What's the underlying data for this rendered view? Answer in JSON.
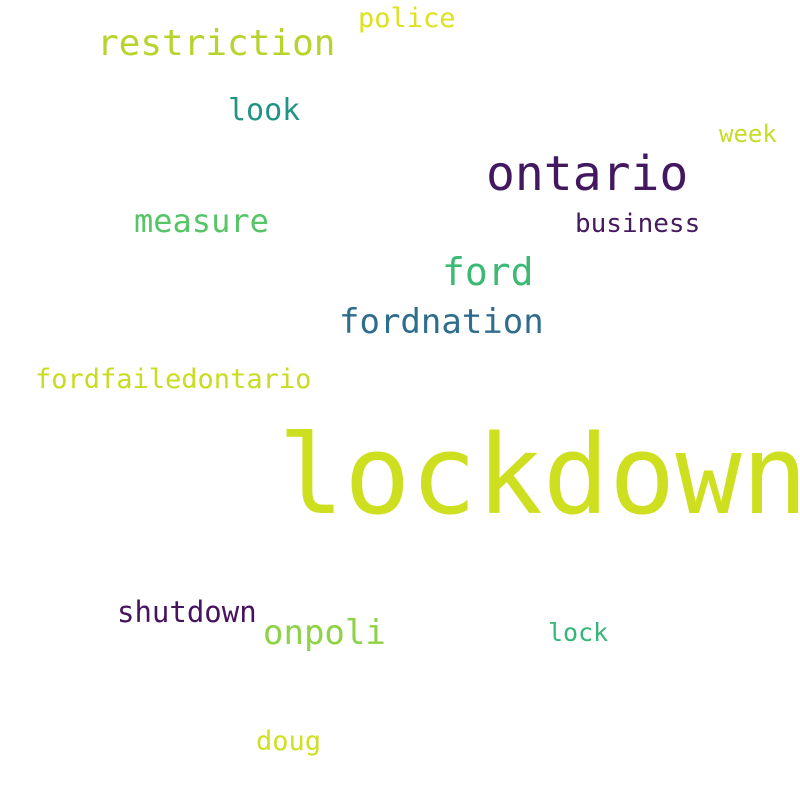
{
  "words": [
    {
      "id": "lockdown",
      "text": "lockdown",
      "color": "#cddf1f"
    },
    {
      "id": "ontario",
      "text": "ontario",
      "color": "#43185f"
    },
    {
      "id": "restriction",
      "text": "restriction",
      "color": "#b7d42d"
    },
    {
      "id": "ford",
      "text": "ford",
      "color": "#3cba74"
    },
    {
      "id": "fordnation",
      "text": "fordnation",
      "color": "#2e6d8e"
    },
    {
      "id": "measure",
      "text": "measure",
      "color": "#56c566"
    },
    {
      "id": "onpoli",
      "text": "onpoli",
      "color": "#8ed247"
    },
    {
      "id": "shutdown",
      "text": "shutdown",
      "color": "#46145e"
    },
    {
      "id": "fordfailedontario",
      "text": "fordfailedontario",
      "color": "#c8dc22"
    },
    {
      "id": "business",
      "text": "business",
      "color": "#461a5e"
    },
    {
      "id": "look",
      "text": "look",
      "color": "#229486"
    },
    {
      "id": "police",
      "text": "police",
      "color": "#dde21c"
    },
    {
      "id": "week",
      "text": "week",
      "color": "#c7dc24"
    },
    {
      "id": "lock",
      "text": "lock",
      "color": "#35b679"
    },
    {
      "id": "doug",
      "text": "doug",
      "color": "#d0df22"
    }
  ]
}
